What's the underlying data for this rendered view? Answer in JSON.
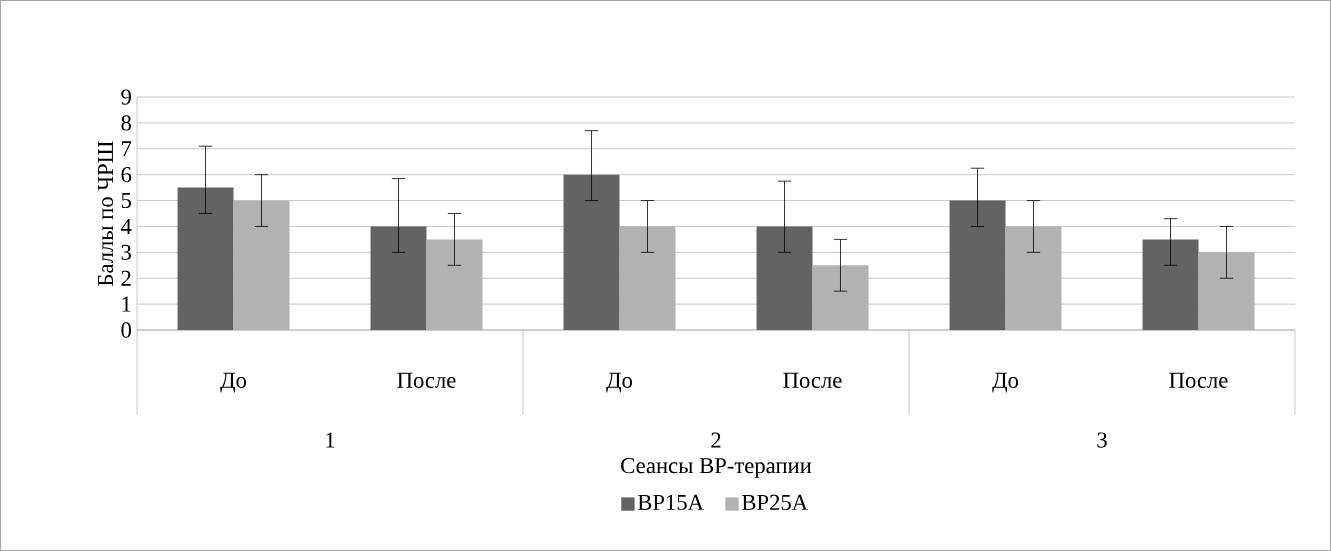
{
  "chart_data": {
    "type": "bar",
    "xlabel": "Сеансы ВР-терапии",
    "ylabel": "Баллы по ЧРШ",
    "categories": [
      "До",
      "После",
      "До",
      "После",
      "До",
      "После"
    ],
    "annotations": [
      "1",
      "2",
      "3"
    ],
    "series": [
      {
        "name": "ВР15А",
        "color": "#636363",
        "values": [
          5.5,
          4,
          6,
          4,
          5,
          3.5
        ],
        "errors": [
          [
            4.5,
            7.1
          ],
          [
            3,
            5.85
          ],
          [
            5,
            7.7
          ],
          [
            3,
            5.75
          ],
          [
            4,
            6.25
          ],
          [
            2.5,
            4.3
          ]
        ]
      },
      {
        "name": "ВР25А",
        "color": "#b2b2b2",
        "values": [
          5,
          3.5,
          4,
          2.5,
          4,
          3
        ],
        "errors": [
          1,
          1,
          1,
          1,
          1,
          1
        ]
      }
    ],
    "ylim": [
      0,
      9
    ],
    "yticks": [
      0,
      1,
      2,
      3,
      4,
      5,
      6,
      7,
      8,
      9
    ],
    "grid": "y",
    "legend": "bottom"
  }
}
